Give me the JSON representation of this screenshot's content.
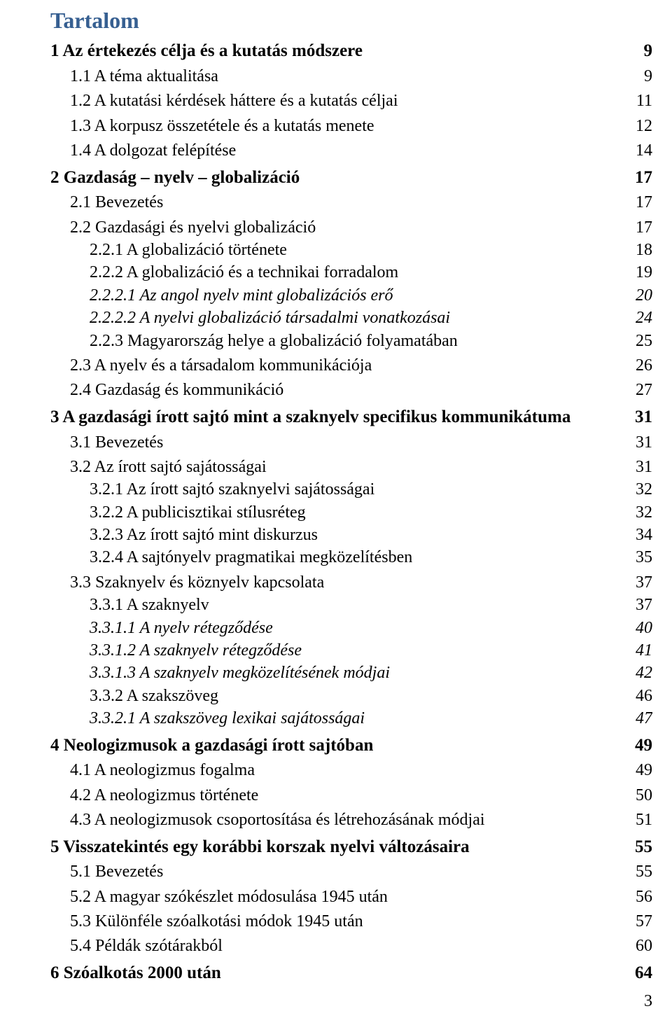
{
  "title": "Tartalom",
  "page_number": "3",
  "colors": {
    "heading": "#365f91",
    "text": "#000000",
    "background": "#ffffff"
  },
  "typography": {
    "body_family": "Times New Roman",
    "body_size_pt": 18,
    "title_size_pt": 24
  },
  "entries": [
    {
      "level": 0,
      "label": "1 Az értekezés célja és a kutatás módszere",
      "page": "9"
    },
    {
      "level": 1,
      "label": "1.1 A téma aktualitása",
      "page": "9"
    },
    {
      "level": 1,
      "label": "1.2 A kutatási kérdések háttere és a kutatás céljai",
      "page": "11"
    },
    {
      "level": 1,
      "label": "1.3 A korpusz összetétele és a kutatás menete",
      "page": "12"
    },
    {
      "level": 1,
      "label": "1.4 A dolgozat felépítése",
      "page": "14"
    },
    {
      "level": 0,
      "label": "2 Gazdaság – nyelv – globalizáció",
      "page": "17"
    },
    {
      "level": 1,
      "label": "2.1 Bevezetés",
      "page": "17"
    },
    {
      "level": 1,
      "label": "2.2 Gazdasági és nyelvi globalizáció",
      "page": "17"
    },
    {
      "level": 2,
      "label": "2.2.1 A globalizáció története",
      "page": "18"
    },
    {
      "level": 2,
      "label": "2.2.2 A globalizáció és a technikai forradalom",
      "page": "19"
    },
    {
      "level": 3,
      "label": "2.2.2.1 Az angol nyelv mint globalizációs erő",
      "page": "20"
    },
    {
      "level": 3,
      "label": "2.2.2.2 A nyelvi globalizáció társadalmi vonatkozásai",
      "page": "24"
    },
    {
      "level": 2,
      "label": "2.2.3 Magyarország helye a globalizáció folyamatában",
      "page": "25"
    },
    {
      "level": 1,
      "label": "2.3 A nyelv és a társadalom kommunikációja",
      "page": "26"
    },
    {
      "level": 1,
      "label": "2.4 Gazdaság és kommunikáció",
      "page": "27"
    },
    {
      "level": 0,
      "label": "3 A gazdasági írott sajtó mint a szaknyelv specifikus kommunikátuma",
      "page": "31"
    },
    {
      "level": 1,
      "label": "3.1 Bevezetés",
      "page": "31"
    },
    {
      "level": 1,
      "label": "3.2 Az írott sajtó sajátosságai",
      "page": "31"
    },
    {
      "level": 2,
      "label": "3.2.1 Az írott sajtó szaknyelvi sajátosságai",
      "page": "32"
    },
    {
      "level": 2,
      "label": "3.2.2 A publicisztikai stílusréteg",
      "page": "32"
    },
    {
      "level": 2,
      "label": "3.2.3 Az írott sajtó mint diskurzus",
      "page": "34"
    },
    {
      "level": 2,
      "label": "3.2.4 A sajtónyelv pragmatikai megközelítésben",
      "page": "35"
    },
    {
      "level": 1,
      "label": "3.3 Szaknyelv és köznyelv kapcsolata",
      "page": "37"
    },
    {
      "level": 2,
      "label": "3.3.1 A szaknyelv",
      "page": "37"
    },
    {
      "level": 3,
      "label": "3.3.1.1 A nyelv rétegződése",
      "page": "40"
    },
    {
      "level": 3,
      "label": "3.3.1.2 A szaknyelv rétegződése",
      "page": "41"
    },
    {
      "level": 3,
      "label": "3.3.1.3 A szaknyelv megközelítésének módjai",
      "page": "42"
    },
    {
      "level": 2,
      "label": "3.3.2 A szakszöveg",
      "page": "46"
    },
    {
      "level": 3,
      "label": "3.3.2.1 A szakszöveg lexikai sajátosságai",
      "page": "47"
    },
    {
      "level": 0,
      "label": "4 Neologizmusok a gazdasági írott sajtóban",
      "page": "49"
    },
    {
      "level": 1,
      "label": "4.1 A neologizmus fogalma",
      "page": "49"
    },
    {
      "level": 1,
      "label": "4.2 A neologizmus története",
      "page": "50"
    },
    {
      "level": 1,
      "label": "4.3 A neologizmusok csoportosítása és létrehozásának módjai",
      "page": "51"
    },
    {
      "level": 0,
      "label": "5 Visszatekintés egy korábbi korszak nyelvi változásaira",
      "page": "55"
    },
    {
      "level": 1,
      "label": "5.1 Bevezetés",
      "page": "55"
    },
    {
      "level": 1,
      "label": "5.2 A magyar szókészlet módosulása 1945 után",
      "page": "56"
    },
    {
      "level": 1,
      "label": "5.3 Különféle szóalkotási módok 1945 után",
      "page": "57"
    },
    {
      "level": 1,
      "label": "5.4 Példák szótárakból",
      "page": "60"
    },
    {
      "level": 0,
      "label": "6 Szóalkotás 2000 után",
      "page": "64"
    }
  ]
}
